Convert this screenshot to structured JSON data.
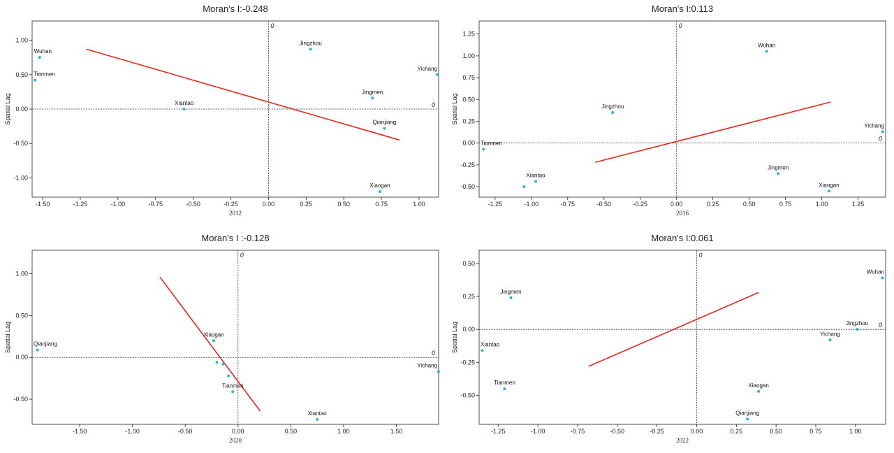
{
  "colors": {
    "point": "#29b6d6",
    "fit_line": "#e8261e",
    "axis": "#222222",
    "zero_line": "#333333"
  },
  "chart_data": [
    {
      "type": "scatter",
      "title": "Moran's I:-0.248",
      "xlabel": "2012",
      "ylabel": "Spatial Lag",
      "xlim": [
        -1.57,
        1.13
      ],
      "ylim": [
        -1.28,
        1.28
      ],
      "xticks": [
        -1.5,
        -1.25,
        -1.0,
        -0.75,
        -0.5,
        -0.25,
        0.0,
        0.25,
        0.5,
        0.75,
        1.0
      ],
      "xtick_labels": [
        "-1.50",
        "-1.25",
        "-1.00",
        "-0.75",
        "-0.50",
        "-0.25",
        "0.00",
        "0.25",
        "0.50",
        "0.75",
        "1.00"
      ],
      "yticks": [
        -1.0,
        -0.5,
        0.0,
        0.5,
        1.0
      ],
      "ytick_labels": [
        "-1.00",
        "-0.50",
        "0.00",
        "0.50",
        "1.00"
      ],
      "zero_label": "0",
      "points": [
        {
          "name": "Wuhan",
          "x": -1.52,
          "y": 0.75
        },
        {
          "name": "Tianmen",
          "x": -1.55,
          "y": 0.42
        },
        {
          "name": "Xiantao",
          "x": -0.56,
          "y": 0.0
        },
        {
          "name": "Jingzhou",
          "x": 0.28,
          "y": 0.87
        },
        {
          "name": "Jingmen",
          "x": 0.69,
          "y": 0.16
        },
        {
          "name": "Yichang",
          "x": 1.12,
          "y": 0.5
        },
        {
          "name": "Qianjiang",
          "x": 0.77,
          "y": -0.28
        },
        {
          "name": "Xiaogan",
          "x": 0.74,
          "y": -1.2
        }
      ],
      "fit_line": {
        "x": [
          -1.21,
          0.87
        ],
        "y": [
          0.87,
          -0.45
        ]
      }
    },
    {
      "type": "scatter",
      "title": "Moran's I:0.113",
      "xlabel": "2016",
      "ylabel": "Spatial Lag",
      "xlim": [
        -1.36,
        1.44
      ],
      "ylim": [
        -0.62,
        1.4
      ],
      "xticks": [
        -1.25,
        -1.0,
        -0.75,
        -0.5,
        -0.25,
        0.0,
        0.25,
        0.5,
        0.75,
        1.0,
        1.25
      ],
      "xtick_labels": [
        "-1.25",
        "-1.00",
        "-0.75",
        "-0.50",
        "-0.25",
        "0.00",
        "0.25",
        "0.50",
        "0.75",
        "1.00",
        "1.25"
      ],
      "yticks": [
        -0.5,
        -0.25,
        0.0,
        0.25,
        0.5,
        0.75,
        1.0,
        1.25
      ],
      "ytick_labels": [
        "-0.50",
        "-0.25",
        "0.00",
        "0.25",
        "0.50",
        "0.75",
        "1.00",
        "1.25"
      ],
      "zero_label": "0",
      "points": [
        {
          "name": "Wuhan",
          "x": 0.62,
          "y": 1.05
        },
        {
          "name": "Jingzhou",
          "x": -0.44,
          "y": 0.35
        },
        {
          "name": "Yichang",
          "x": 1.42,
          "y": 0.13
        },
        {
          "name": "Tianmen",
          "x": -1.33,
          "y": -0.07
        },
        {
          "name": "Xiantao",
          "x": -0.97,
          "y": -0.44
        },
        {
          "name": "",
          "x": -1.05,
          "y": -0.5
        },
        {
          "name": "Jingmen",
          "x": 0.7,
          "y": -0.35
        },
        {
          "name": "Xiaogan",
          "x": 1.05,
          "y": -0.55
        }
      ],
      "fit_line": {
        "x": [
          -0.56,
          1.06
        ],
        "y": [
          -0.22,
          0.47
        ]
      }
    },
    {
      "type": "scatter",
      "title": "Moran's I :-0.128",
      "xlabel": "2020",
      "ylabel": "Spatial Lag",
      "xlim": [
        -1.95,
        1.9
      ],
      "ylim": [
        -0.8,
        1.28
      ],
      "xticks": [
        -1.5,
        -1.0,
        -0.5,
        0.0,
        0.5,
        1.0,
        1.5
      ],
      "xtick_labels": [
        "-1.50",
        "-1.00",
        "-0.50",
        "0.00",
        "0.50",
        "1.00",
        "1.50"
      ],
      "yticks": [
        -0.5,
        0.0,
        0.5,
        1.0
      ],
      "ytick_labels": [
        "-0.50",
        "0.00",
        "0.50",
        "1.00"
      ],
      "zero_label": "0",
      "points": [
        {
          "name": "Qianjiang",
          "x": -1.9,
          "y": 0.09
        },
        {
          "name": "Xiaogan",
          "x": -0.23,
          "y": 0.2
        },
        {
          "name": "",
          "x": -0.2,
          "y": -0.06
        },
        {
          "name": "",
          "x": -0.14,
          "y": -0.08
        },
        {
          "name": "",
          "x": -0.09,
          "y": -0.22
        },
        {
          "name": "Tianmen",
          "x": -0.05,
          "y": -0.41
        },
        {
          "name": "Yichang",
          "x": 1.9,
          "y": -0.17
        },
        {
          "name": "Xiantao",
          "x": 0.75,
          "y": -0.74
        }
      ],
      "fit_line": {
        "x": [
          -0.74,
          0.21
        ],
        "y": [
          0.96,
          -0.64
        ]
      }
    },
    {
      "type": "scatter",
      "title": "Moran's I:0.061",
      "xlabel": "2022",
      "ylabel": "Spatial Lag",
      "xlim": [
        -1.37,
        1.19
      ],
      "ylim": [
        -0.72,
        0.6
      ],
      "xticks": [
        -1.25,
        -1.0,
        -0.75,
        -0.5,
        -0.25,
        0.0,
        0.25,
        0.5,
        0.75,
        1.0
      ],
      "xtick_labels": [
        "-1.25",
        "-1.00",
        "-0.75",
        "-0.50",
        "-0.25",
        "0.00",
        "0.25",
        "0.50",
        "0.75",
        "1.00"
      ],
      "yticks": [
        -0.5,
        -0.25,
        0.0,
        0.25,
        0.5
      ],
      "ytick_labels": [
        "-0.50",
        "-0.25",
        "0.00",
        "0.25",
        "0.50"
      ],
      "zero_label": "0",
      "points": [
        {
          "name": "Wuhan",
          "x": 1.17,
          "y": 0.39
        },
        {
          "name": "Jingmen",
          "x": -1.17,
          "y": 0.24
        },
        {
          "name": "Jingzhou",
          "x": 1.01,
          "y": 0.0
        },
        {
          "name": "Yichang",
          "x": 0.84,
          "y": -0.08
        },
        {
          "name": "Xiantao",
          "x": -1.35,
          "y": -0.16
        },
        {
          "name": "Tianmen",
          "x": -1.21,
          "y": -0.45
        },
        {
          "name": "Xiaogan",
          "x": 0.39,
          "y": -0.47
        },
        {
          "name": "Qianjiang",
          "x": 0.32,
          "y": -0.68
        }
      ],
      "fit_line": {
        "x": [
          -0.68,
          0.39
        ],
        "y": [
          -0.28,
          0.28
        ]
      }
    }
  ]
}
